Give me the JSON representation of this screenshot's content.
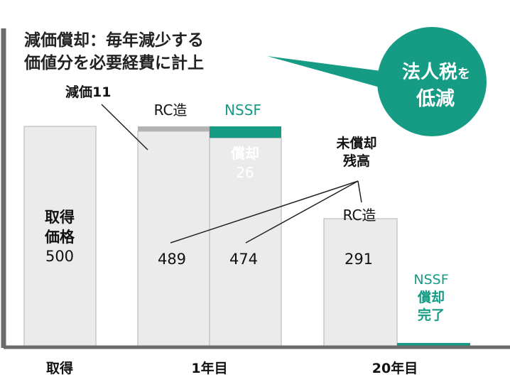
{
  "chart_data": {
    "type": "bar",
    "title_lines": [
      "減価償却：毎年減少する",
      "価値分を必要経費に計上"
    ],
    "categories": [
      "取得",
      "1年目",
      "20年目"
    ],
    "acquisition": {
      "label_lines": [
        "取得",
        "価格",
        "500"
      ],
      "value": 500
    },
    "year1": {
      "rc": {
        "header": "RC造",
        "remaining": 489,
        "depreciation": 11,
        "depreciation_label": "減価11"
      },
      "nssf": {
        "header": "NSSF",
        "remaining": 474,
        "depreciation": 26,
        "depreciation_label_lines": [
          "償却",
          "26"
        ]
      }
    },
    "year20": {
      "rc": {
        "header": "RC造",
        "remaining": 291
      },
      "nssf": {
        "remaining": 0,
        "label_lines": [
          "NSSF",
          "償却",
          "完了"
        ]
      }
    },
    "remaining_callout_lines": [
      "未償却",
      "残高"
    ],
    "bubble": {
      "line1_main": "法人税",
      "line1_small": "を",
      "line2": "低減"
    },
    "ylim": [
      0,
      560
    ],
    "colors": {
      "bar_fill": "#ebebeb",
      "bar_stroke": "#c8c8c8",
      "rc_depreciation": "#b3b3b3",
      "accent": "#169b85",
      "axis": "#6b6b6b",
      "text": "#111111"
    }
  }
}
